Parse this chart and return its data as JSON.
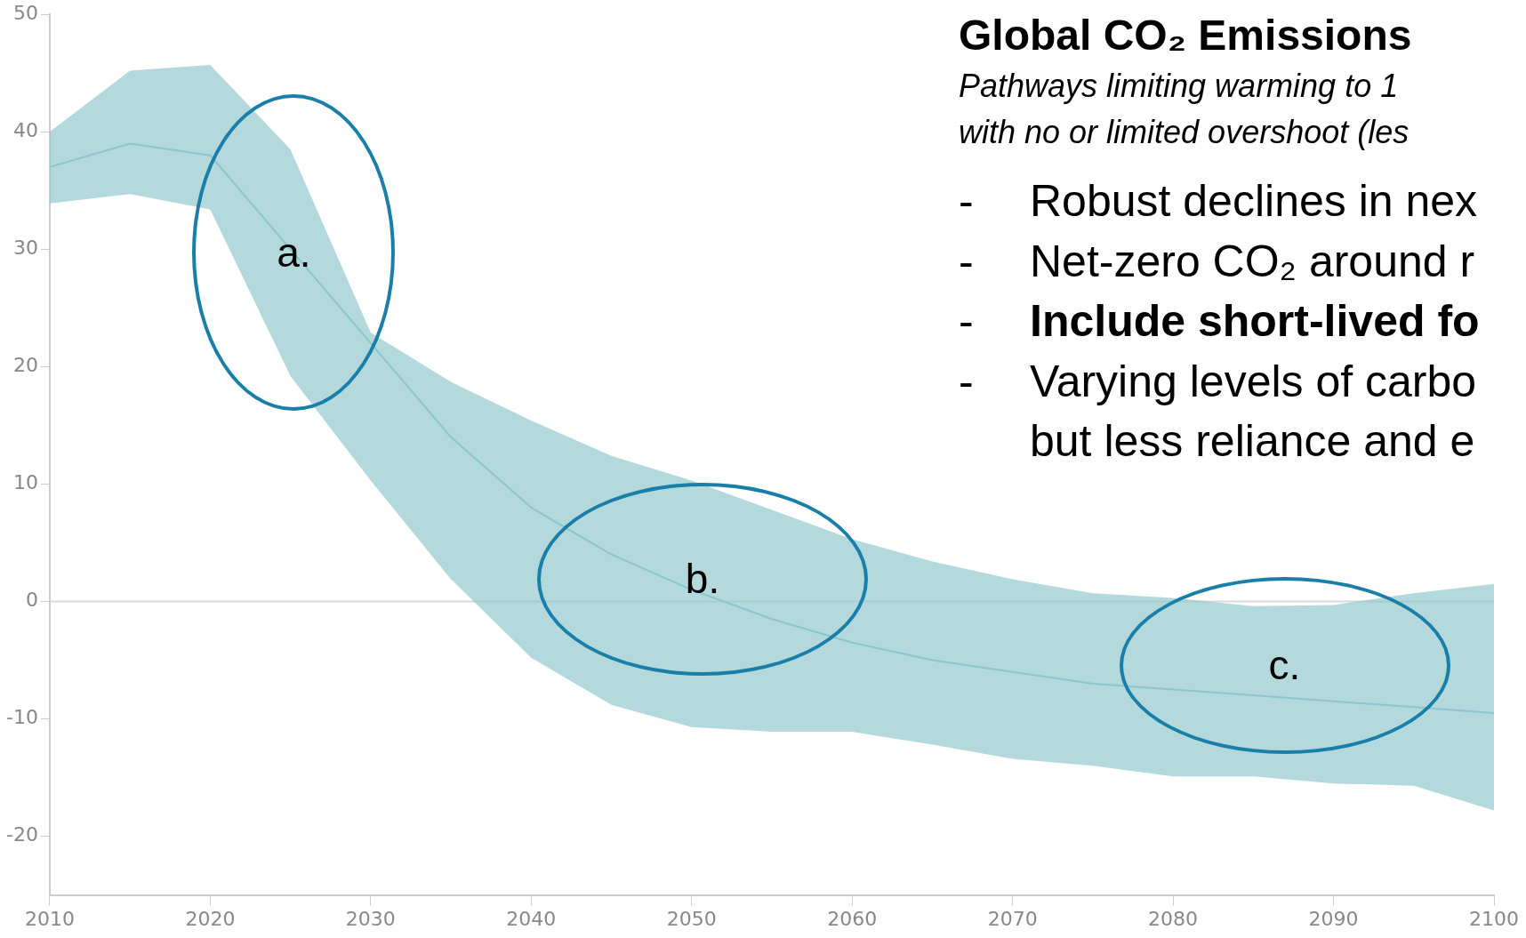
{
  "chart_data": {
    "type": "line",
    "title": "Global CO₂ Emissions",
    "subtitle": "Pathways limiting warming to 1\nwith no or limited overshoot (les",
    "x": [
      2010,
      2015,
      2020,
      2025,
      2030,
      2035,
      2040,
      2045,
      2050,
      2055,
      2060,
      2065,
      2070,
      2075,
      2080,
      2085,
      2090,
      2095,
      2100
    ],
    "series": [
      {
        "color": "#8cc5cb",
        "values": [
          37,
          39,
          38,
          30,
          22,
          14,
          8,
          4,
          1,
          -1.5,
          -3.5,
          -5,
          -6,
          -7,
          -7.5,
          -8,
          -8.5,
          -9,
          -9.5
        ],
        "upper": [
          40,
          45.2,
          45.7,
          38.5,
          22.9,
          18.7,
          15.4,
          12.4,
          10.3,
          7.8,
          5.3,
          3.4,
          1.9,
          0.7,
          0.3,
          -0.4,
          -0.3,
          0.7,
          1.5
        ],
        "lower": [
          33.9,
          34.7,
          33.4,
          19.2,
          10.3,
          1.9,
          -4.8,
          -8.8,
          -10.7,
          -11.1,
          -11.1,
          -12.2,
          -13.4,
          -14,
          -14.9,
          -14.9,
          -15.5,
          -15.7,
          -17.8
        ]
      }
    ],
    "xlim": [
      2010,
      2100
    ],
    "xticks": [
      2010,
      2020,
      2030,
      2040,
      2050,
      2060,
      2070,
      2080,
      2090,
      2100
    ],
    "ylim": [
      -25,
      50
    ],
    "yticks": [
      -20,
      -10,
      0,
      10,
      20,
      30,
      40,
      50
    ],
    "ref_lines": [
      {
        "axis": "y",
        "value": 0,
        "color": "#d9d9d9"
      }
    ],
    "grid": false,
    "legend": false,
    "marker": "none",
    "line_style": "solid",
    "annotations": [
      "- Robust declines in nex",
      "- Net-zero CO₂ around r",
      "- Include short-lived fo",
      "- Varying levels of carbo\nbut less reliance and e",
      "a.",
      "b.",
      "c."
    ]
  }
}
